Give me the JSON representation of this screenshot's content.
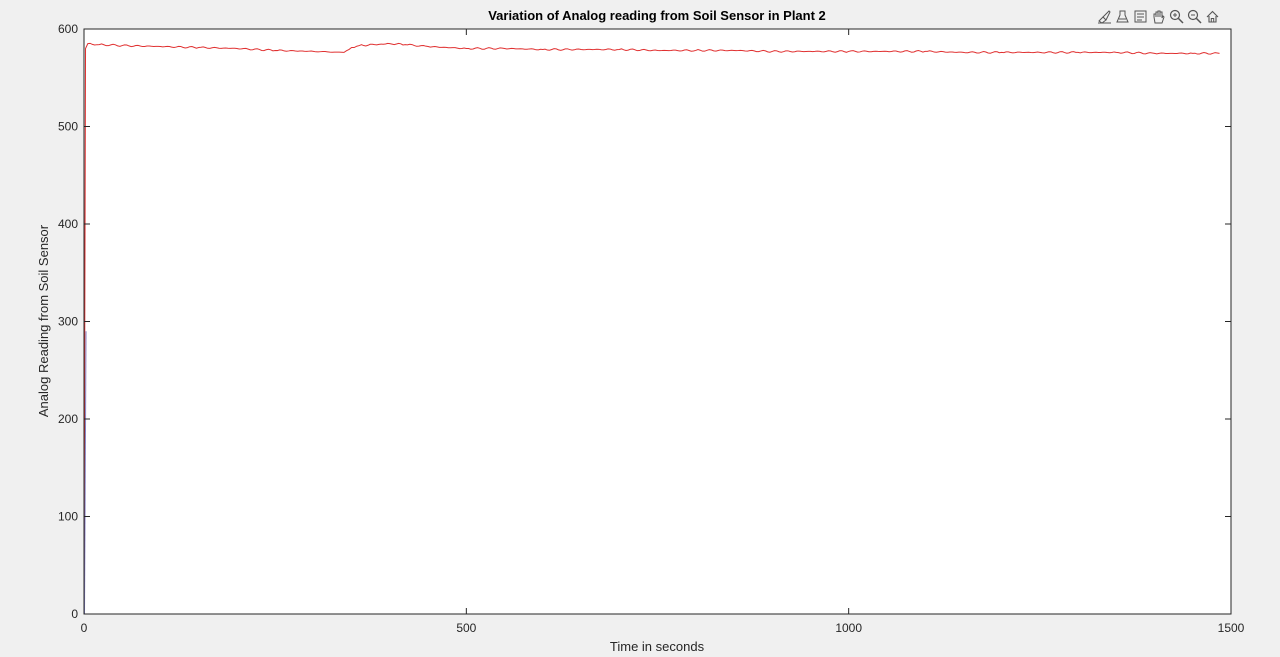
{
  "colors": {
    "figure_background": "#f0f0f0",
    "axes_background": "#ffffff",
    "axes_line": "#262626",
    "series_line": "#e03030",
    "series_start": "#3030a0"
  },
  "toolbar": {
    "icons": [
      "brush-icon",
      "data-tips-icon",
      "pan-icon",
      "zoom-in-icon",
      "zoom-out-icon",
      "home-icon"
    ]
  },
  "chart_data": {
    "type": "line",
    "title": "Variation of Analog reading from Soil Sensor in Plant 2",
    "xlabel": "Time in seconds",
    "ylabel": "Analog Reading from Soil Sensor",
    "xlim": [
      0,
      1500
    ],
    "ylim": [
      0,
      600
    ],
    "xticks": [
      0,
      500,
      1000,
      1500
    ],
    "yticks": [
      0,
      100,
      200,
      300,
      400,
      500,
      600
    ],
    "grid": false,
    "legend": "none",
    "series": [
      {
        "color": "#e03030",
        "x": [
          0,
          2,
          5,
          20,
          50,
          100,
          150,
          200,
          250,
          300,
          340,
          350,
          360,
          380,
          400,
          420,
          450,
          500,
          550,
          600,
          650,
          700,
          750,
          800,
          850,
          900,
          950,
          1000,
          1050,
          1100,
          1150,
          1200,
          1250,
          1300,
          1350,
          1400,
          1450,
          1485
        ],
        "y": [
          0,
          580,
          585,
          584,
          583,
          582,
          581,
          580,
          578,
          577,
          576,
          581,
          583,
          584,
          585,
          584,
          582,
          580,
          580,
          579,
          579,
          579,
          578,
          578,
          578,
          577,
          577,
          577,
          577,
          577,
          576,
          576,
          576,
          576,
          576,
          575,
          575,
          575
        ]
      }
    ]
  }
}
